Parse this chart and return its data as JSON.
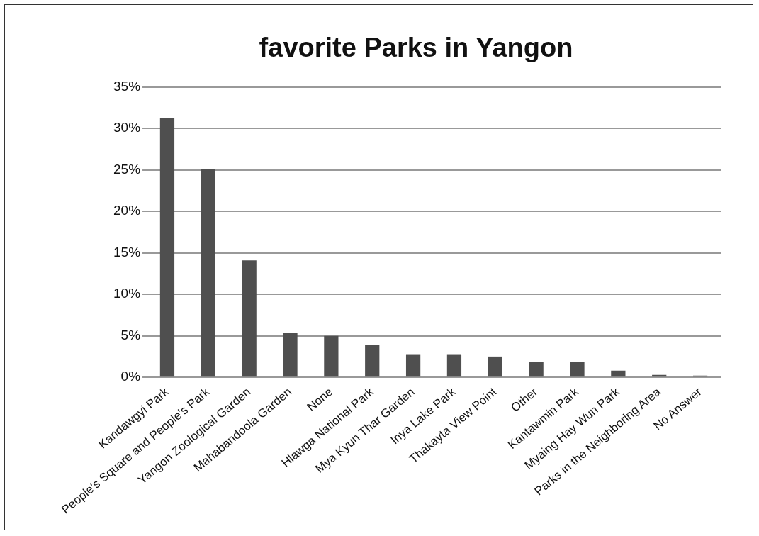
{
  "chart_data": {
    "type": "bar",
    "title": "favorite Parks in Yangon",
    "categories": [
      "Kandawgyi Park",
      "People's Square and People's Park",
      "Yangon Zoological Garden",
      "Mahabandoola Garden",
      "None",
      "Hlawga National Park",
      "Mya Kyun Thar Garden",
      "Inya Lake Park",
      "Thakayta View Point",
      "Other",
      "Kantawmin Park",
      "Myaing Hay Wun Park",
      "Parks in the Neighboring Area",
      "No Answer"
    ],
    "values": [
      31.3,
      25.1,
      14.1,
      5.4,
      5.0,
      3.9,
      2.7,
      2.7,
      2.5,
      1.9,
      1.9,
      0.8,
      0.3,
      0.2
    ],
    "color": "#4f4f4f",
    "ylim": [
      0,
      35
    ],
    "yticks": [
      {
        "value": 0,
        "label": "0%"
      },
      {
        "value": 5,
        "label": "5%"
      },
      {
        "value": 10,
        "label": "10%"
      },
      {
        "value": 15,
        "label": "15%"
      },
      {
        "value": 20,
        "label": "20%"
      },
      {
        "value": 25,
        "label": "25%"
      },
      {
        "value": 30,
        "label": "30%"
      },
      {
        "value": 35,
        "label": "35%"
      }
    ],
    "grid": "y",
    "legend": false
  }
}
